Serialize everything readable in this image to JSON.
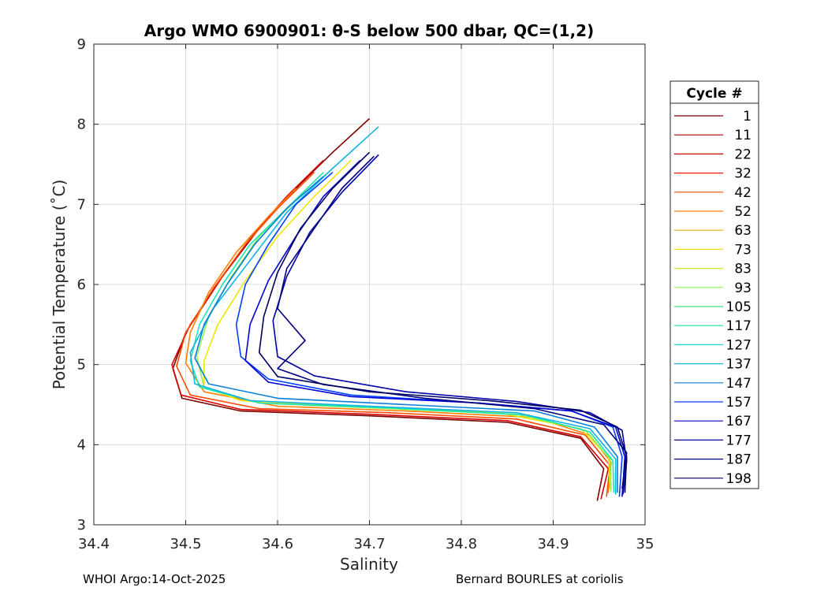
{
  "chart_data": {
    "type": "line",
    "title": "Argo WMO 6900901: θ-S below 500 dbar,  QC=(1,2)",
    "xlabel": "Salinity",
    "ylabel": "Potential Temperature (˚C)",
    "xlim": [
      34.4,
      35.0
    ],
    "ylim": [
      3,
      9
    ],
    "xticks": [
      34.4,
      34.5,
      34.6,
      34.7,
      34.8,
      34.9,
      35.0
    ],
    "xtick_labels": [
      "34.4",
      "34.5",
      "34.6",
      "34.7",
      "34.8",
      "34.9",
      "35"
    ],
    "yticks": [
      3,
      4,
      5,
      6,
      7,
      8,
      9
    ],
    "ytick_labels": [
      "3",
      "4",
      "5",
      "6",
      "7",
      "8",
      "9"
    ],
    "grid": true,
    "legend": {
      "title": "Cycle #",
      "placement": "right",
      "entries": [
        {
          "label": "1",
          "color": "#7f0000"
        },
        {
          "label": "11",
          "color": "#a80000"
        },
        {
          "label": "22",
          "color": "#d40000"
        },
        {
          "label": "32",
          "color": "#ff1a00"
        },
        {
          "label": "42",
          "color": "#ff4a00"
        },
        {
          "label": "52",
          "color": "#ff7f00"
        },
        {
          "label": "63",
          "color": "#e6b000"
        },
        {
          "label": "73",
          "color": "#f2e600"
        },
        {
          "label": "83",
          "color": "#c8ee2a"
        },
        {
          "label": "93",
          "color": "#8ef055"
        },
        {
          "label": "105",
          "color": "#3fe27a"
        },
        {
          "label": "117",
          "color": "#19e6b0"
        },
        {
          "label": "127",
          "color": "#1ad6d6"
        },
        {
          "label": "137",
          "color": "#12b4e6"
        },
        {
          "label": "147",
          "color": "#0a7ed8"
        },
        {
          "label": "157",
          "color": "#0040ff"
        },
        {
          "label": "167",
          "color": "#0000d4"
        },
        {
          "label": "177",
          "color": "#0000a8"
        },
        {
          "label": "187",
          "color": "#00007f"
        },
        {
          "label": "198",
          "color": "#000060"
        }
      ]
    },
    "series_profiles": [
      {
        "color": "#7f0000",
        "s": [
          34.7,
          34.66,
          34.62,
          34.58,
          34.54,
          34.5,
          34.486,
          34.496,
          34.56,
          34.7,
          34.85,
          34.93,
          34.955,
          34.948
        ],
        "t": [
          8.07,
          7.65,
          7.2,
          6.7,
          6.1,
          5.4,
          4.95,
          4.58,
          4.42,
          4.36,
          4.28,
          4.08,
          3.7,
          3.3
        ]
      },
      {
        "color": "#d40000",
        "s": [
          34.65,
          34.61,
          34.575,
          34.54,
          34.505,
          34.485,
          34.495,
          34.56,
          34.7,
          34.85,
          34.93,
          34.96,
          34.952
        ],
        "t": [
          7.55,
          7.1,
          6.65,
          6.1,
          5.5,
          5.0,
          4.62,
          4.44,
          4.38,
          4.3,
          4.1,
          3.7,
          3.32
        ]
      },
      {
        "color": "#ff4a00",
        "s": [
          34.64,
          34.6,
          34.565,
          34.53,
          34.5,
          34.49,
          34.505,
          34.58,
          34.72,
          34.86,
          34.935,
          34.962,
          34.958
        ],
        "t": [
          7.4,
          6.95,
          6.5,
          5.95,
          5.4,
          4.98,
          4.62,
          4.45,
          4.4,
          4.32,
          4.12,
          3.74,
          3.35
        ]
      },
      {
        "color": "#ff7f00",
        "s": [
          34.62,
          34.59,
          34.555,
          34.525,
          34.505,
          34.5,
          34.52,
          34.6,
          34.74,
          34.88,
          34.94,
          34.963,
          34.96
        ],
        "t": [
          7.2,
          6.85,
          6.4,
          5.9,
          5.4,
          5.02,
          4.66,
          4.48,
          4.42,
          4.34,
          4.12,
          3.78,
          3.4
        ]
      },
      {
        "color": "#f2e600",
        "s": [
          34.68,
          34.64,
          34.6,
          34.565,
          34.535,
          34.52,
          34.52,
          34.56,
          34.68,
          34.84,
          34.93,
          34.96,
          34.962
        ],
        "t": [
          7.55,
          7.1,
          6.6,
          6.05,
          5.5,
          5.05,
          4.72,
          4.55,
          4.48,
          4.4,
          4.2,
          3.85,
          3.45
        ]
      },
      {
        "color": "#8ef055",
        "s": [
          34.66,
          34.62,
          34.58,
          34.55,
          34.525,
          34.512,
          34.52,
          34.58,
          34.7,
          34.86,
          34.935,
          34.962,
          34.963
        ],
        "t": [
          7.45,
          7.05,
          6.6,
          6.1,
          5.6,
          5.1,
          4.72,
          4.52,
          4.46,
          4.38,
          4.18,
          3.82,
          3.42
        ]
      },
      {
        "color": "#19e6b0",
        "s": [
          34.65,
          34.61,
          34.57,
          34.54,
          34.515,
          34.505,
          34.515,
          34.58,
          34.72,
          34.87,
          34.94,
          34.965,
          34.966
        ],
        "t": [
          7.4,
          6.95,
          6.5,
          6.0,
          5.5,
          5.05,
          4.72,
          4.52,
          4.46,
          4.37,
          4.16,
          3.8,
          3.4
        ]
      },
      {
        "color": "#12b4e6",
        "s": [
          34.71,
          34.66,
          34.61,
          34.57,
          34.53,
          34.505,
          34.51,
          34.57,
          34.7,
          34.86,
          34.94,
          34.968,
          34.968
        ],
        "t": [
          7.97,
          7.45,
          6.9,
          6.3,
          5.7,
          5.15,
          4.76,
          4.55,
          4.48,
          4.4,
          4.2,
          3.82,
          3.38
        ]
      },
      {
        "color": "#0a7ed8",
        "s": [
          34.65,
          34.61,
          34.575,
          34.545,
          34.52,
          34.51,
          34.525,
          34.6,
          34.74,
          34.88,
          34.945,
          34.97,
          34.97
        ],
        "t": [
          7.35,
          6.95,
          6.5,
          6.0,
          5.5,
          5.08,
          4.76,
          4.58,
          4.5,
          4.42,
          4.22,
          3.85,
          3.4
        ]
      },
      {
        "color": "#0040ff",
        "s": [
          34.66,
          34.62,
          34.59,
          34.565,
          34.555,
          34.56,
          34.59,
          34.68,
          34.82,
          34.92,
          34.965,
          34.975,
          34.972
        ],
        "t": [
          7.4,
          7.0,
          6.5,
          6.0,
          5.5,
          5.1,
          4.82,
          4.62,
          4.52,
          4.42,
          4.22,
          3.85,
          3.35
        ]
      },
      {
        "color": "#0000d4",
        "s": [
          34.69,
          34.65,
          34.62,
          34.59,
          34.57,
          34.565,
          34.59,
          34.68,
          34.82,
          34.92,
          34.968,
          34.978,
          34.975
        ],
        "t": [
          7.55,
          7.1,
          6.6,
          6.05,
          5.5,
          5.05,
          4.78,
          4.6,
          4.52,
          4.42,
          4.22,
          3.85,
          3.35
        ]
      },
      {
        "color": "#0000a8",
        "s": [
          34.71,
          34.67,
          34.635,
          34.61,
          34.595,
          34.6,
          34.64,
          34.74,
          34.86,
          34.94,
          34.975,
          34.98,
          34.976
        ],
        "t": [
          7.62,
          7.15,
          6.65,
          6.1,
          5.55,
          5.1,
          4.86,
          4.66,
          4.54,
          4.4,
          4.18,
          3.8,
          3.38
        ]
      },
      {
        "color": "#00007f",
        "s": [
          34.705,
          34.67,
          34.64,
          34.61,
          34.6,
          34.63,
          34.6,
          34.65,
          34.76,
          34.88,
          34.955,
          34.98,
          34.975
        ],
        "t": [
          7.6,
          7.2,
          6.7,
          6.2,
          5.7,
          5.3,
          4.95,
          4.75,
          4.58,
          4.45,
          4.25,
          3.9,
          3.45
        ]
      },
      {
        "color": "#000060",
        "s": [
          34.7,
          34.66,
          34.625,
          34.6,
          34.585,
          34.58,
          34.6,
          34.7,
          34.83,
          34.93,
          34.97,
          34.98,
          34.978
        ],
        "t": [
          7.65,
          7.2,
          6.7,
          6.15,
          5.6,
          5.15,
          4.85,
          4.66,
          4.55,
          4.43,
          4.22,
          3.85,
          3.4
        ]
      }
    ]
  },
  "footer": {
    "left": "WHOI Argo:14-Oct-2025",
    "right": "Bernard BOURLES at coriolis"
  }
}
